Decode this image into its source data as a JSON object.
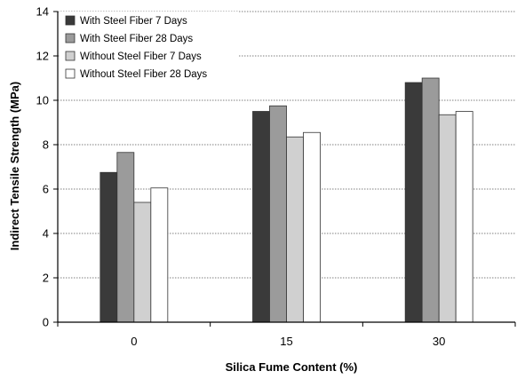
{
  "chart_data": {
    "type": "bar",
    "title": "",
    "xlabel": "Silica Fume Content (%)",
    "ylabel": "Indirect Tensile Strength (MPa)",
    "categories": [
      "0",
      "15",
      "30"
    ],
    "ylim": [
      0,
      14
    ],
    "yticks": [
      "0",
      "2",
      "4",
      "6",
      "8",
      "10",
      "12",
      "14"
    ],
    "grid": "horizontal dotted",
    "legend_position": "top-left",
    "series": [
      {
        "name": "With Steel Fiber 7 Days",
        "values": [
          6.75,
          9.5,
          10.8
        ],
        "color": "#3a3a3a"
      },
      {
        "name": "With Steel Fiber 28 Days",
        "values": [
          7.65,
          9.75,
          11.0
        ],
        "color": "#9b9b9b"
      },
      {
        "name": "Without Steel Fiber 7 Days",
        "values": [
          5.4,
          8.35,
          9.35
        ],
        "color": "#d0d0d0"
      },
      {
        "name": "Without Steel Fiber 28 Days",
        "values": [
          6.05,
          8.55,
          9.5
        ],
        "color": "#ffffff"
      }
    ]
  }
}
